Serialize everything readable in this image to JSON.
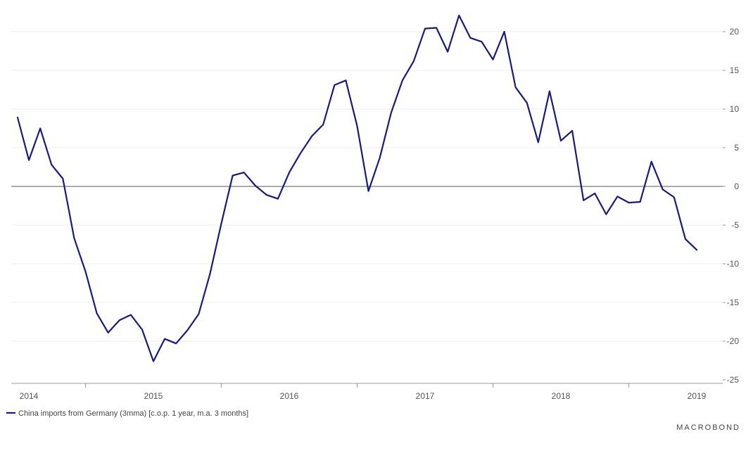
{
  "chart_data": {
    "type": "line",
    "x_labels": [
      "2014",
      "2015",
      "2016",
      "2017",
      "2018",
      "2019"
    ],
    "ylim": [
      -25,
      20
    ],
    "yticks": [
      20,
      15,
      10,
      5,
      0,
      -5,
      -10,
      -15,
      -20,
      -25
    ],
    "series": [
      {
        "name": "China imports from Germany (3mma) [c.o.p. 1 year, m.a. 3 months]",
        "color": "#1a1a7e",
        "values": [
          {
            "x": "2014-01",
            "y": 8.9
          },
          {
            "x": "2014-02",
            "y": 3.4
          },
          {
            "x": "2014-03",
            "y": 7.5
          },
          {
            "x": "2014-04",
            "y": 2.8
          },
          {
            "x": "2014-05",
            "y": 1.0
          },
          {
            "x": "2014-06",
            "y": -6.7
          },
          {
            "x": "2014-07",
            "y": -11.0
          },
          {
            "x": "2014-08",
            "y": -16.4
          },
          {
            "x": "2014-09",
            "y": -18.9
          },
          {
            "x": "2014-10",
            "y": -17.3
          },
          {
            "x": "2014-11",
            "y": -16.6
          },
          {
            "x": "2014-12",
            "y": -18.5
          },
          {
            "x": "2015-01",
            "y": -22.6
          },
          {
            "x": "2015-02",
            "y": -19.7
          },
          {
            "x": "2015-03",
            "y": -20.3
          },
          {
            "x": "2015-04",
            "y": -18.6
          },
          {
            "x": "2015-05",
            "y": -16.5
          },
          {
            "x": "2015-06",
            "y": -11.3
          },
          {
            "x": "2015-07",
            "y": -4.8
          },
          {
            "x": "2015-08",
            "y": 1.4
          },
          {
            "x": "2015-09",
            "y": 1.8
          },
          {
            "x": "2015-10",
            "y": 0.1
          },
          {
            "x": "2015-11",
            "y": -1.1
          },
          {
            "x": "2015-12",
            "y": -1.6
          },
          {
            "x": "2016-01",
            "y": 1.8
          },
          {
            "x": "2016-02",
            "y": 4.3
          },
          {
            "x": "2016-03",
            "y": 6.5
          },
          {
            "x": "2016-04",
            "y": 8.0
          },
          {
            "x": "2016-05",
            "y": 13.1
          },
          {
            "x": "2016-06",
            "y": 13.7
          },
          {
            "x": "2016-07",
            "y": 7.8
          },
          {
            "x": "2016-08",
            "y": -0.6
          },
          {
            "x": "2016-09",
            "y": 3.7
          },
          {
            "x": "2016-10",
            "y": 9.5
          },
          {
            "x": "2016-11",
            "y": 13.7
          },
          {
            "x": "2016-12",
            "y": 16.2
          },
          {
            "x": "2017-01",
            "y": 20.4
          },
          {
            "x": "2017-02",
            "y": 20.5
          },
          {
            "x": "2017-03",
            "y": 17.4
          },
          {
            "x": "2017-04",
            "y": 22.1
          },
          {
            "x": "2017-05",
            "y": 19.2
          },
          {
            "x": "2017-06",
            "y": 18.7
          },
          {
            "x": "2017-07",
            "y": 16.4
          },
          {
            "x": "2017-08",
            "y": 20.0
          },
          {
            "x": "2017-09",
            "y": 12.8
          },
          {
            "x": "2017-10",
            "y": 10.8
          },
          {
            "x": "2017-11",
            "y": 5.7
          },
          {
            "x": "2017-12",
            "y": 12.3
          },
          {
            "x": "2018-01",
            "y": 5.9
          },
          {
            "x": "2018-02",
            "y": 7.2
          },
          {
            "x": "2018-03",
            "y": -1.8
          },
          {
            "x": "2018-04",
            "y": -0.9
          },
          {
            "x": "2018-05",
            "y": -3.6
          },
          {
            "x": "2018-06",
            "y": -1.3
          },
          {
            "x": "2018-07",
            "y": -2.1
          },
          {
            "x": "2018-08",
            "y": -2.0
          },
          {
            "x": "2018-09",
            "y": 3.2
          },
          {
            "x": "2018-10",
            "y": -0.4
          },
          {
            "x": "2018-11",
            "y": -1.4
          },
          {
            "x": "2018-12",
            "y": -6.8
          },
          {
            "x": "2019-01",
            "y": -8.2
          }
        ]
      }
    ],
    "grid": true,
    "legend_position": "bottom-left"
  },
  "footer": {
    "legend_label": "China imports from Germany (3mma) [c.o.p. 1 year, m.a. 3 months]",
    "brand": "MACROBOND"
  }
}
